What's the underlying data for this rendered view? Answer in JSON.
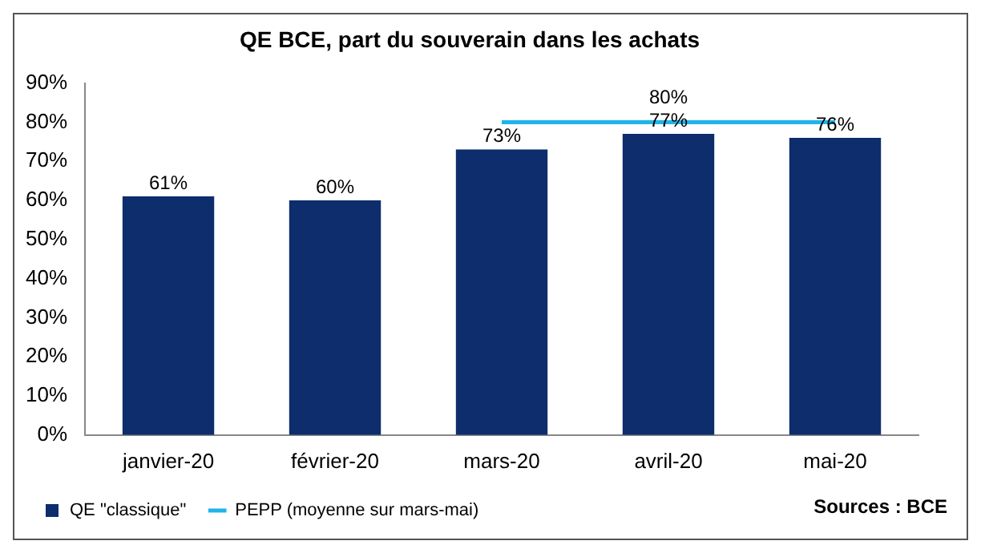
{
  "chart_data": {
    "type": "bar",
    "title": "QE BCE, part du souverain dans les achats",
    "categories": [
      "janvier-20",
      "février-20",
      "mars-20",
      "avril-20",
      "mai-20"
    ],
    "series": [
      {
        "name": "QE \"classique\"",
        "color": "#0d2d6c",
        "values": [
          61,
          60,
          73,
          77,
          76
        ],
        "value_labels": [
          "61%",
          "60%",
          "73%",
          "77%",
          "76%"
        ]
      },
      {
        "name": "PEPP (moyenne sur mars-mai)",
        "type": "line",
        "color": "#1fb4e8",
        "values": [
          null,
          null,
          80,
          80,
          80
        ],
        "value_labels": [
          null,
          null,
          null,
          "80%",
          null
        ]
      }
    ],
    "ylim": [
      0,
      90
    ],
    "yticks": [
      {
        "value": 0,
        "label": "0%"
      },
      {
        "value": 10,
        "label": "10%"
      },
      {
        "value": 20,
        "label": "20%"
      },
      {
        "value": 30,
        "label": "30%"
      },
      {
        "value": 40,
        "label": "40%"
      },
      {
        "value": 50,
        "label": "50%"
      },
      {
        "value": 60,
        "label": "60%"
      },
      {
        "value": 70,
        "label": "70%"
      },
      {
        "value": 80,
        "label": "80%"
      },
      {
        "value": 90,
        "label": "90%"
      }
    ],
    "grid": false,
    "legend": "bottom left",
    "marker": "none",
    "annotations": [
      "Sources : BCE"
    ]
  }
}
